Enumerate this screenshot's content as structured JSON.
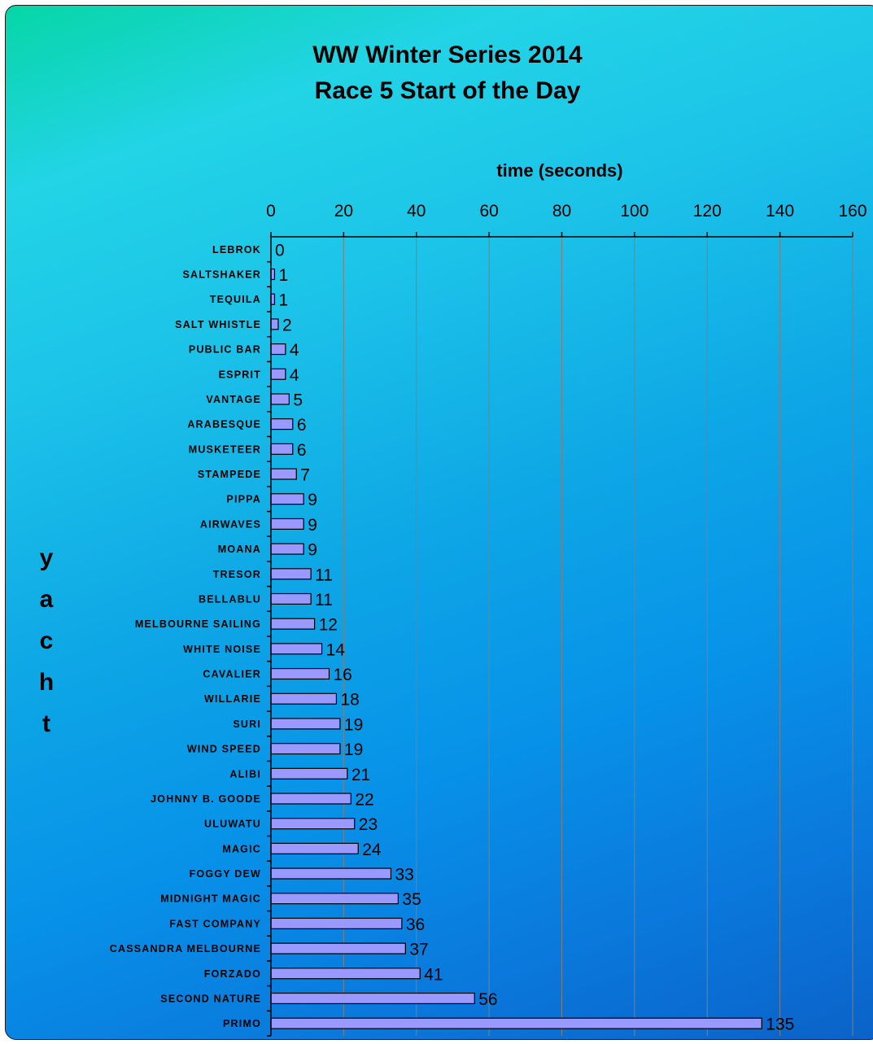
{
  "chart_data": {
    "type": "bar",
    "orientation": "horizontal",
    "title_line1": "WW Winter Series 2014",
    "title_line2": "Race 5 Start of the Day",
    "xlabel": "time (seconds)",
    "ylabel": "yacht",
    "xlim": [
      0,
      160
    ],
    "x_ticks": [
      0,
      20,
      40,
      60,
      80,
      100,
      120,
      140,
      160
    ],
    "grid": true,
    "x_axis_position": "top",
    "bar_color": "#9999ff",
    "categories": [
      "LEBROK",
      "SALTSHAKER",
      "TEQUILA",
      "SALT WHISTLE",
      "PUBLIC BAR",
      "ESPRIT",
      "VANTAGE",
      "ARABESQUE",
      "MUSKETEER",
      "STAMPEDE",
      "PIPPA",
      "AIRWAVES",
      "MOANA",
      "TRESOR",
      "BELLABLU",
      "MELBOURNE SAILING",
      "WHITE NOISE",
      "CAVALIER",
      "WILLARIE",
      "SURI",
      "WIND SPEED",
      "ALIBI",
      "JOHNNY B. GOODE",
      "ULUWATU",
      "MAGIC",
      "FOGGY DEW",
      "MIDNIGHT MAGIC",
      "FAST COMPANY",
      "CASSANDRA MELBOURNE",
      "FORZADO",
      "SECOND NATURE",
      "PRIMO"
    ],
    "values": [
      0,
      1,
      1,
      2,
      4,
      4,
      5,
      6,
      6,
      7,
      9,
      9,
      9,
      11,
      11,
      12,
      14,
      16,
      18,
      19,
      19,
      21,
      22,
      23,
      24,
      33,
      35,
      36,
      37,
      41,
      56,
      135
    ]
  }
}
